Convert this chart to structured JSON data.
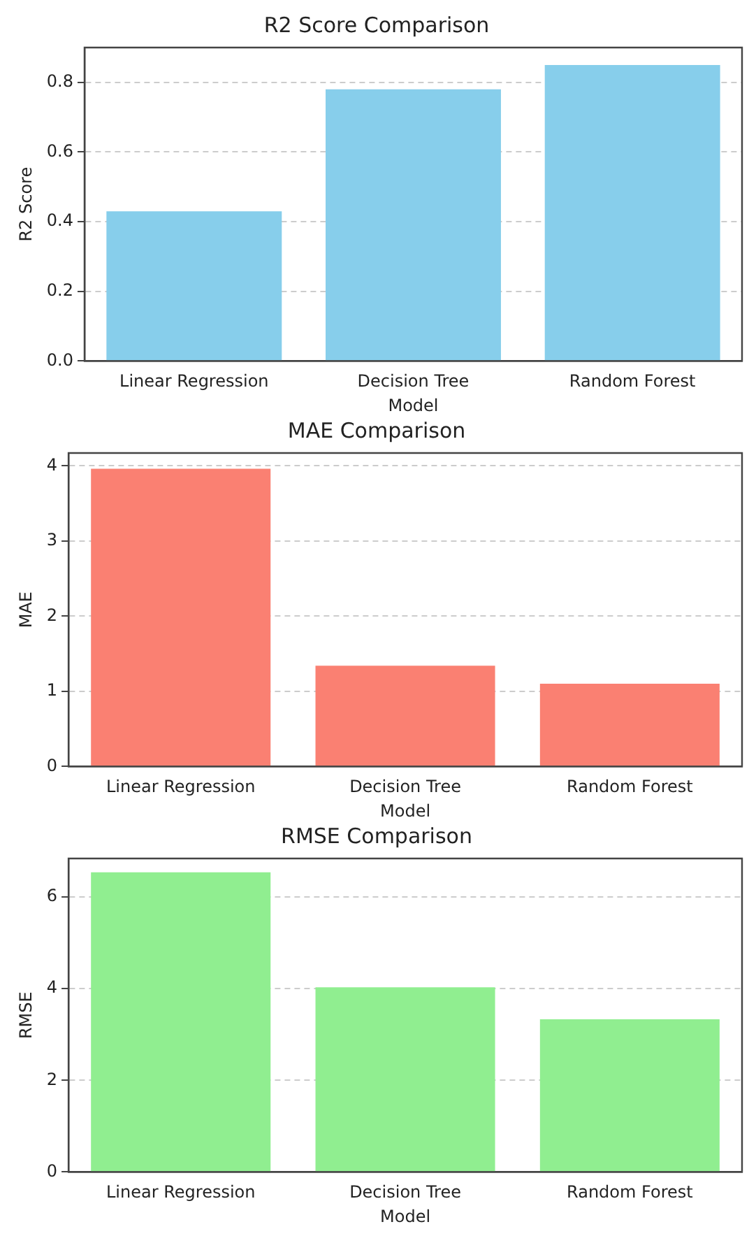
{
  "chart_data": [
    {
      "type": "bar",
      "title": "R2 Score Comparison",
      "xlabel": "Model",
      "ylabel": "R2 Score",
      "categories": [
        "Linear Regression",
        "Decision Tree",
        "Random Forest"
      ],
      "values": [
        0.43,
        0.78,
        0.85
      ],
      "color": "#87ceeb",
      "ylim": [
        0,
        0.9
      ],
      "yticks": [
        {
          "value": 0,
          "label": "0.0"
        },
        0.2,
        0.4,
        0.6,
        0.8
      ],
      "grid": "y"
    },
    {
      "type": "bar",
      "title": "MAE Comparison",
      "xlabel": "Model",
      "ylabel": "MAE",
      "categories": [
        "Linear Regression",
        "Decision Tree",
        "Random Forest"
      ],
      "values": [
        3.96,
        1.34,
        1.1
      ],
      "color": "#fa8072",
      "ylim": [
        0,
        4.17
      ],
      "yticks": [
        0,
        1,
        2,
        3,
        4
      ],
      "grid": "y"
    },
    {
      "type": "bar",
      "title": "RMSE Comparison",
      "xlabel": "Model",
      "ylabel": "RMSE",
      "categories": [
        "Linear Regression",
        "Decision Tree",
        "Random Forest"
      ],
      "values": [
        6.54,
        4.03,
        3.33
      ],
      "color": "#90ee90",
      "ylim": [
        0,
        6.84
      ],
      "yticks": [
        0,
        2,
        4,
        6
      ],
      "grid": "y"
    }
  ]
}
